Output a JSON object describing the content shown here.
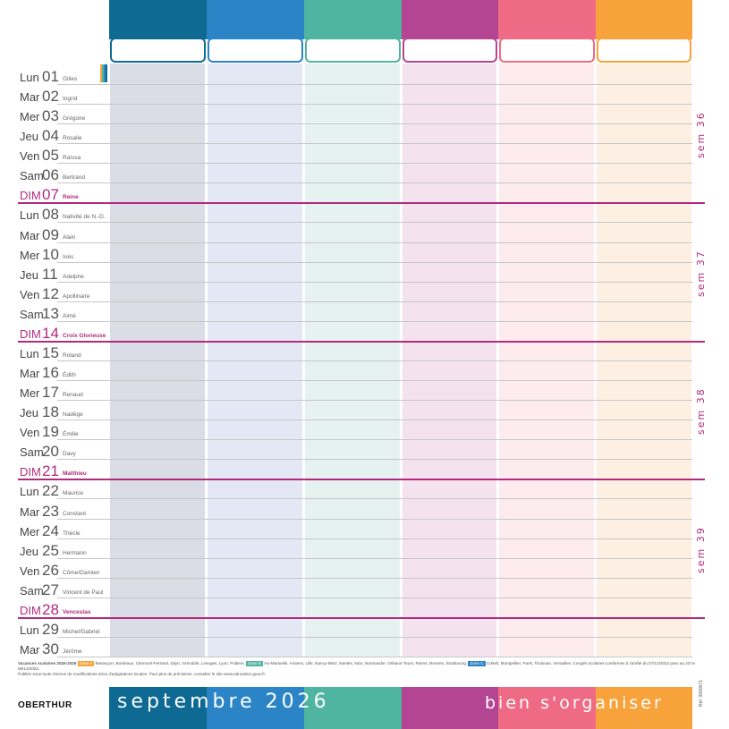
{
  "colors": {
    "col1": "#0e6a93",
    "col2": "#2b84c5",
    "col3": "#4fb4a0",
    "col4": "#b44592",
    "col5": "#ef6a84",
    "col6": "#f7a23b",
    "col1_body": "#dadde6",
    "col2_body": "#e3e8f4",
    "col3_body": "#e6f2ef",
    "col4_body": "#f4e3ef",
    "col5_body": "#fdebee",
    "col6_body": "#fdf0e3",
    "sunday": "#b12a7e",
    "zone_a": "#f7a23b",
    "zone_b": "#4fb4a0",
    "zone_c": "#2b84c5"
  },
  "days": [
    {
      "abbr": "Lun",
      "num": "01",
      "saint": "Gilles",
      "sunday": false
    },
    {
      "abbr": "Mar",
      "num": "02",
      "saint": "Ingrid",
      "sunday": false
    },
    {
      "abbr": "Mer",
      "num": "03",
      "saint": "Grégoire",
      "sunday": false
    },
    {
      "abbr": "Jeu",
      "num": "04",
      "saint": "Rosalie",
      "sunday": false
    },
    {
      "abbr": "Ven",
      "num": "05",
      "saint": "Raïssa",
      "sunday": false
    },
    {
      "abbr": "Sam",
      "num": "06",
      "saint": "Bertrand",
      "sunday": false
    },
    {
      "abbr": "DIM",
      "num": "07",
      "saint": "Reine",
      "sunday": true
    },
    {
      "abbr": "Lun",
      "num": "08",
      "saint": "Nativité de N.-D.",
      "sunday": false
    },
    {
      "abbr": "Mar",
      "num": "09",
      "saint": "Alain",
      "sunday": false
    },
    {
      "abbr": "Mer",
      "num": "10",
      "saint": "Inès",
      "sunday": false
    },
    {
      "abbr": "Jeu",
      "num": "11",
      "saint": "Adelphe",
      "sunday": false
    },
    {
      "abbr": "Ven",
      "num": "12",
      "saint": "Apollinaire",
      "sunday": false
    },
    {
      "abbr": "Sam",
      "num": "13",
      "saint": "Aimé",
      "sunday": false
    },
    {
      "abbr": "DIM",
      "num": "14",
      "saint": "Croix Glorieuse",
      "sunday": true
    },
    {
      "abbr": "Lun",
      "num": "15",
      "saint": "Roland",
      "sunday": false
    },
    {
      "abbr": "Mar",
      "num": "16",
      "saint": "Édith",
      "sunday": false
    },
    {
      "abbr": "Mer",
      "num": "17",
      "saint": "Renaud",
      "sunday": false
    },
    {
      "abbr": "Jeu",
      "num": "18",
      "saint": "Nadège",
      "sunday": false
    },
    {
      "abbr": "Ven",
      "num": "19",
      "saint": "Émilie",
      "sunday": false
    },
    {
      "abbr": "Sam",
      "num": "20",
      "saint": "Davy",
      "sunday": false
    },
    {
      "abbr": "DIM",
      "num": "21",
      "saint": "Matthieu",
      "sunday": true
    },
    {
      "abbr": "Lun",
      "num": "22",
      "saint": "Maurice",
      "sunday": false
    },
    {
      "abbr": "Mar",
      "num": "23",
      "saint": "Constant",
      "sunday": false
    },
    {
      "abbr": "Mer",
      "num": "24",
      "saint": "Thècle",
      "sunday": false
    },
    {
      "abbr": "Jeu",
      "num": "25",
      "saint": "Hermann",
      "sunday": false
    },
    {
      "abbr": "Ven",
      "num": "26",
      "saint": "Côme/Damien",
      "sunday": false
    },
    {
      "abbr": "Sam",
      "num": "27",
      "saint": "Vincent de Paul",
      "sunday": false
    },
    {
      "abbr": "DIM",
      "num": "28",
      "saint": "Venceslas",
      "sunday": true
    },
    {
      "abbr": "Lun",
      "num": "29",
      "saint": "Michel/Gabriel",
      "sunday": false
    },
    {
      "abbr": "Mar",
      "num": "30",
      "saint": "Jérôme",
      "sunday": false
    }
  ],
  "weeks": [
    {
      "label": "sem 36",
      "after_day_index": 6
    },
    {
      "label": "sem 37",
      "after_day_index": 13
    },
    {
      "label": "sem 38",
      "after_day_index": 20
    },
    {
      "label": "sem 39",
      "after_day_index": 27
    }
  ],
  "footer": {
    "title": "Vacances scolaires 2025-2026",
    "zone_a_label": "Zone A",
    "zone_a_text": "Besançon, Bordeaux, Clermont-Ferrand, Dijon, Grenoble, Limoges, Lyon, Poitiers.",
    "zone_b_label": "Zone B",
    "zone_b_text": "Aix-Marseille, Amiens, Lille, Nancy-Metz, Nantes, Nice, Normandie, Orléans-Tours, Reims, Rennes, Strasbourg.",
    "zone_c_label": "Zone C",
    "zone_c_text": "Créteil, Montpellier, Paris, Toulouse, Versailles. Congés scolaires conformes à l'arrêté du 07/12/2022 paru au JO le 08/12/2022.",
    "line2": "Publiés sous toute réserve de modifications et/ou d'adaptations locales. Pour plus de précisions, consulter le site www.education.gouv.fr."
  },
  "bottom": {
    "brand": "OBERTHUR",
    "month": "septembre 2026",
    "slogan": "bien s'organiser",
    "ref": "Réf. 0000071"
  }
}
